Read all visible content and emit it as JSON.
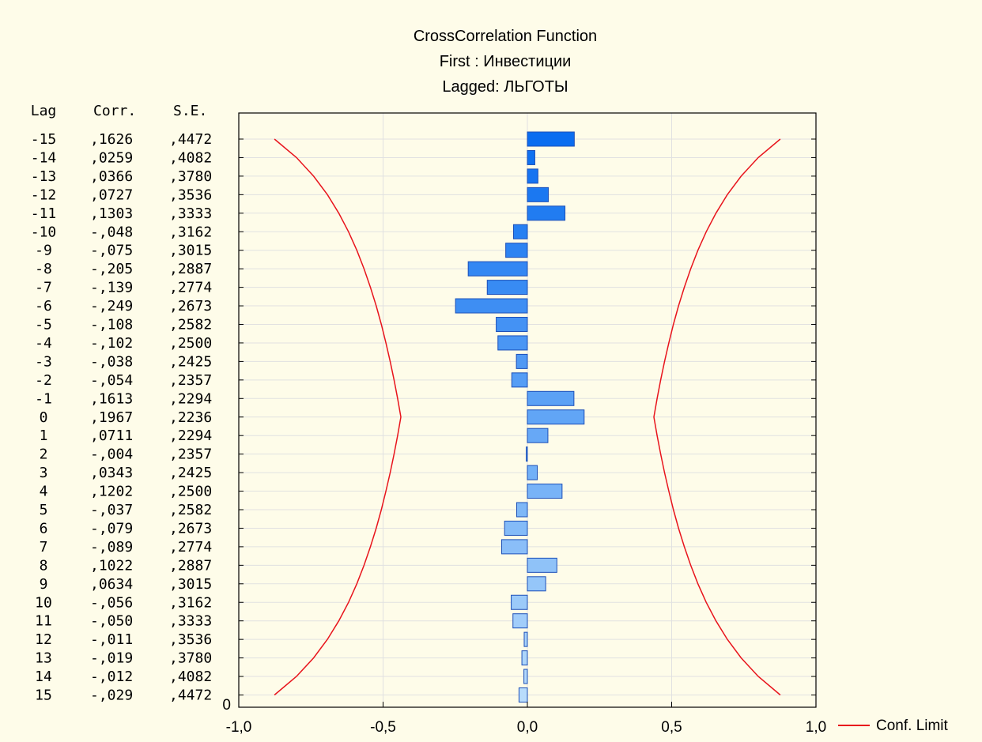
{
  "chart_data": {
    "type": "bar",
    "orientation": "horizontal",
    "title": "CrossCorrelation Function",
    "subtitle_lines": [
      "First : Инвестиции",
      "Lagged: ЛЬГОТЫ"
    ],
    "columns": {
      "lag": "Lag",
      "corr": "Corr.",
      "se": "S.E."
    },
    "xlim": [
      -1.0,
      1.0
    ],
    "x_ticks": [
      "-1,0",
      "-0,5",
      "0,0",
      "0,5",
      "1,0"
    ],
    "x_tick_values": [
      -1.0,
      -0.5,
      0.0,
      0.5,
      1.0
    ],
    "y_bottom_label": "0",
    "grid": true,
    "legend": {
      "position": "bottom-right",
      "entries": [
        {
          "label": "Conf. Limit",
          "color": "#e8141c"
        }
      ]
    },
    "colors": {
      "bar_dark": "#0a6df0",
      "bar_light": "#b8dcfb",
      "bar_stroke": "#1c4fb8",
      "conf_limit": "#e8141c",
      "background": "#fefce9"
    },
    "rows": [
      {
        "lag": "-15",
        "corr": ",1626",
        "se": ",4472",
        "value": 0.1626,
        "conf": 0.8765
      },
      {
        "lag": "-14",
        "corr": ",0259",
        "se": ",4082",
        "value": 0.0259,
        "conf": 0.8001
      },
      {
        "lag": "-13",
        "corr": ",0366",
        "se": ",3780",
        "value": 0.0366,
        "conf": 0.7409
      },
      {
        "lag": "-12",
        "corr": ",0727",
        "se": ",3536",
        "value": 0.0727,
        "conf": 0.693
      },
      {
        "lag": "-11",
        "corr": ",1303",
        "se": ",3333",
        "value": 0.1303,
        "conf": 0.6533
      },
      {
        "lag": "-10",
        "corr": "-,048",
        "se": ",3162",
        "value": -0.048,
        "conf": 0.6198
      },
      {
        "lag": "-9",
        "corr": "-,075",
        "se": ",3015",
        "value": -0.075,
        "conf": 0.5909
      },
      {
        "lag": "-8",
        "corr": "-,205",
        "se": ",2887",
        "value": -0.205,
        "conf": 0.5659
      },
      {
        "lag": "-7",
        "corr": "-,139",
        "se": ",2774",
        "value": -0.139,
        "conf": 0.5437
      },
      {
        "lag": "-6",
        "corr": "-,249",
        "se": ",2673",
        "value": -0.249,
        "conf": 0.5239
      },
      {
        "lag": "-5",
        "corr": "-,108",
        "se": ",2582",
        "value": -0.108,
        "conf": 0.5061
      },
      {
        "lag": "-4",
        "corr": "-,102",
        "se": ",2500",
        "value": -0.102,
        "conf": 0.49
      },
      {
        "lag": "-3",
        "corr": "-,038",
        "se": ",2425",
        "value": -0.038,
        "conf": 0.4753
      },
      {
        "lag": "-2",
        "corr": "-,054",
        "se": ",2357",
        "value": -0.054,
        "conf": 0.462
      },
      {
        "lag": "-1",
        "corr": ",1613",
        "se": ",2294",
        "value": 0.1613,
        "conf": 0.4496
      },
      {
        "lag": "0",
        "corr": ",1967",
        "se": ",2236",
        "value": 0.1967,
        "conf": 0.4383
      },
      {
        "lag": "1",
        "corr": ",0711",
        "se": ",2294",
        "value": 0.0711,
        "conf": 0.4496
      },
      {
        "lag": "2",
        "corr": "-,004",
        "se": ",2357",
        "value": -0.004,
        "conf": 0.462
      },
      {
        "lag": "3",
        "corr": ",0343",
        "se": ",2425",
        "value": 0.0343,
        "conf": 0.4753
      },
      {
        "lag": "4",
        "corr": ",1202",
        "se": ",2500",
        "value": 0.1202,
        "conf": 0.49
      },
      {
        "lag": "5",
        "corr": "-,037",
        "se": ",2582",
        "value": -0.037,
        "conf": 0.5061
      },
      {
        "lag": "6",
        "corr": "-,079",
        "se": ",2673",
        "value": -0.079,
        "conf": 0.5239
      },
      {
        "lag": "7",
        "corr": "-,089",
        "se": ",2774",
        "value": -0.089,
        "conf": 0.5437
      },
      {
        "lag": "8",
        "corr": ",1022",
        "se": ",2887",
        "value": 0.1022,
        "conf": 0.5659
      },
      {
        "lag": "9",
        "corr": ",0634",
        "se": ",3015",
        "value": 0.0634,
        "conf": 0.5909
      },
      {
        "lag": "10",
        "corr": "-,056",
        "se": ",3162",
        "value": -0.056,
        "conf": 0.6198
      },
      {
        "lag": "11",
        "corr": "-,050",
        "se": ",3333",
        "value": -0.05,
        "conf": 0.6533
      },
      {
        "lag": "12",
        "corr": "-,011",
        "se": ",3536",
        "value": -0.011,
        "conf": 0.693
      },
      {
        "lag": "13",
        "corr": "-,019",
        "se": ",3780",
        "value": -0.019,
        "conf": 0.7409
      },
      {
        "lag": "14",
        "corr": "-,012",
        "se": ",4082",
        "value": -0.012,
        "conf": 0.8001
      },
      {
        "lag": "15",
        "corr": "-,029",
        "se": ",4472",
        "value": -0.029,
        "conf": 0.8765
      }
    ]
  }
}
